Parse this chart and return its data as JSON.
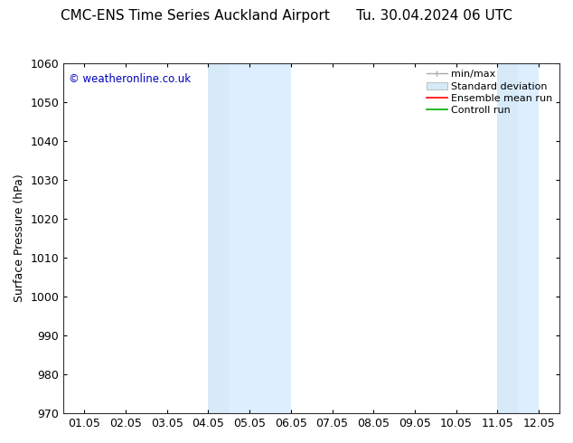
{
  "title": "CMC-ENS Time Series Auckland Airport      Tu. 30.04.2024 06 UTC",
  "ylabel": "Surface Pressure (hPa)",
  "ylim": [
    970,
    1060
  ],
  "yticks": [
    970,
    980,
    990,
    1000,
    1010,
    1020,
    1030,
    1040,
    1050,
    1060
  ],
  "xlabels": [
    "01.05",
    "02.05",
    "03.05",
    "04.05",
    "05.05",
    "06.05",
    "07.05",
    "08.05",
    "09.05",
    "10.05",
    "11.05",
    "12.05"
  ],
  "x_positions": [
    0,
    1,
    2,
    3,
    4,
    5,
    6,
    7,
    8,
    9,
    10,
    11
  ],
  "shaded_bands": [
    {
      "xmin": 3.0,
      "xmax": 3.5,
      "color": "#d6eaf8"
    },
    {
      "xmin": 3.5,
      "xmax": 5.0,
      "color": "#ddeeff"
    },
    {
      "xmin": 10.0,
      "xmax": 10.5,
      "color": "#d6eaf8"
    },
    {
      "xmin": 10.5,
      "xmax": 11.0,
      "color": "#ddeeff"
    }
  ],
  "watermark": "© weatheronline.co.uk",
  "watermark_color": "#0000bb",
  "legend_labels": [
    "min/max",
    "Standard deviation",
    "Ensemble mean run",
    "Controll run"
  ],
  "legend_line_colors": [
    "#aaaaaa",
    "#cccccc",
    "#ff0000",
    "#00aa00"
  ],
  "background_color": "#ffffff",
  "plot_bg_color": "#ffffff",
  "title_fontsize": 11,
  "ylabel_fontsize": 9,
  "tick_fontsize": 9,
  "legend_fontsize": 8
}
